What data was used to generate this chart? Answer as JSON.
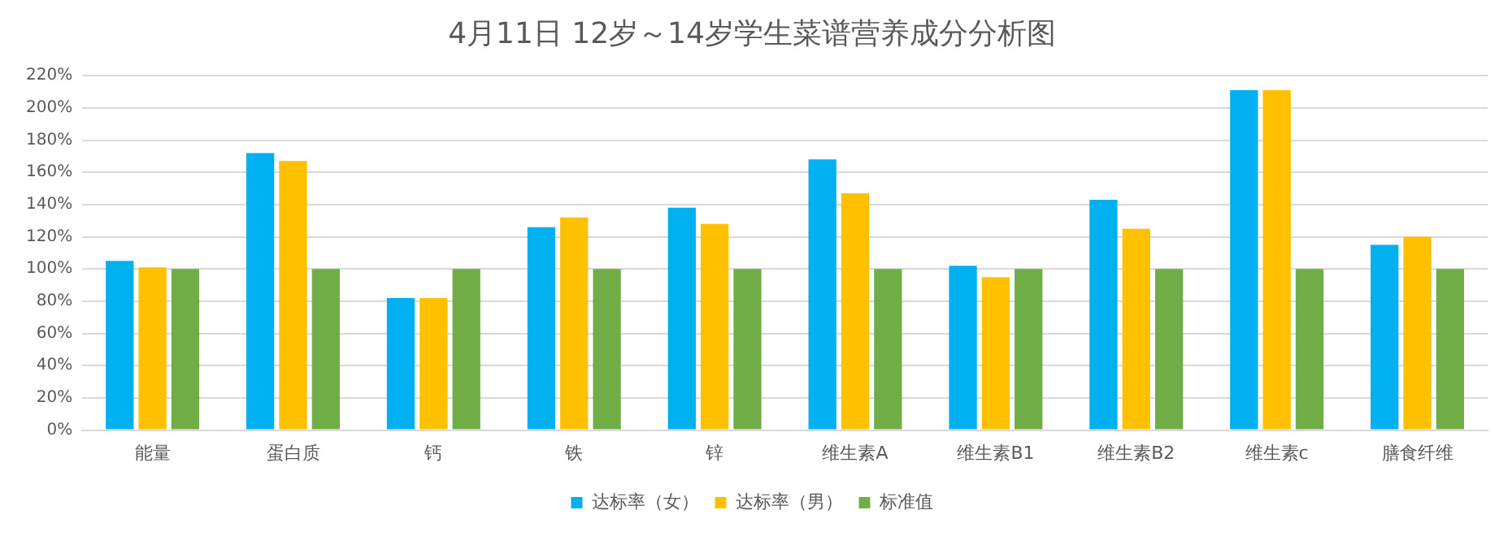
{
  "chart_data": {
    "type": "bar",
    "title": "4月11日 12岁～14岁学生菜谱营养成分分析图",
    "categories": [
      "能量",
      "蛋白质",
      "钙",
      "铁",
      "锌",
      "维生素A",
      "维生素B1",
      "维生素B2",
      "维生素c",
      "膳食纤维"
    ],
    "series": [
      {
        "name": "达标率（女）",
        "color": "#00b0f0",
        "values": [
          105,
          172,
          82,
          126,
          138,
          168,
          102,
          143,
          211,
          115
        ]
      },
      {
        "name": "达标率（男）",
        "color": "#ffc000",
        "values": [
          101,
          167,
          82,
          132,
          128,
          147,
          95,
          125,
          211,
          120
        ]
      },
      {
        "name": "标准值",
        "color": "#70ad47",
        "values": [
          100,
          100,
          100,
          100,
          100,
          100,
          100,
          100,
          100,
          100
        ]
      }
    ],
    "ylim": [
      0,
      220
    ],
    "yticks": [
      {
        "value": 0,
        "label": "0%"
      },
      {
        "value": 20,
        "label": "20%"
      },
      {
        "value": 40,
        "label": "40%"
      },
      {
        "value": 60,
        "label": "60%"
      },
      {
        "value": 80,
        "label": "80%"
      },
      {
        "value": 100,
        "label": "100%"
      },
      {
        "value": 120,
        "label": "120%"
      },
      {
        "value": 140,
        "label": "140%"
      },
      {
        "value": 160,
        "label": "160%"
      },
      {
        "value": 180,
        "label": "180%"
      },
      {
        "value": 200,
        "label": "200%"
      },
      {
        "value": 220,
        "label": "220%"
      }
    ],
    "grid": "y",
    "legend": "bottom"
  }
}
